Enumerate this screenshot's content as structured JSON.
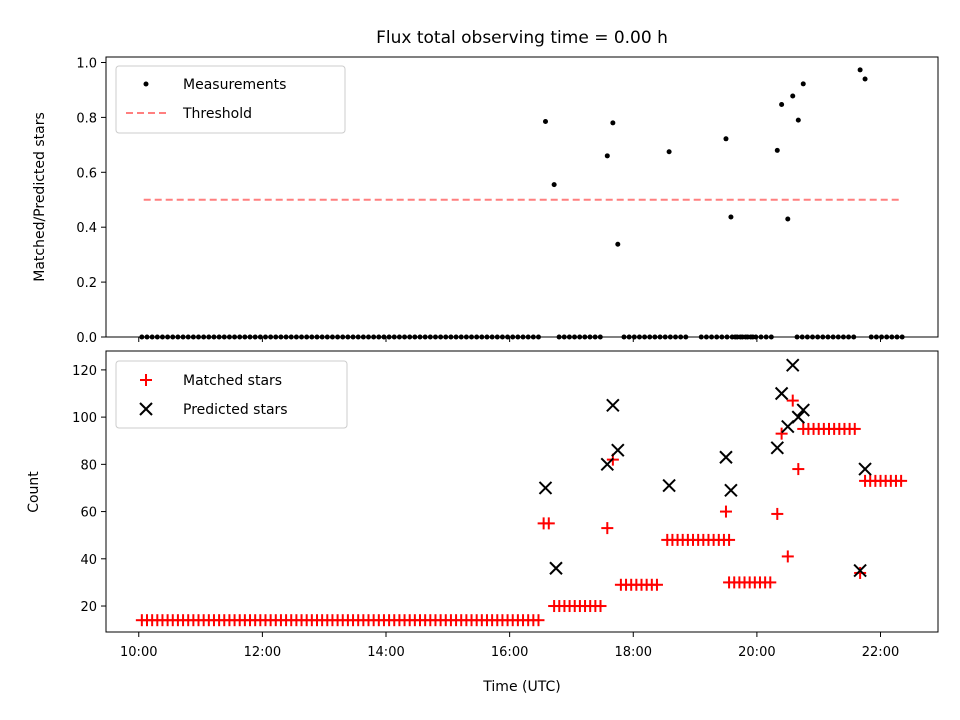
{
  "chart_data": {
    "title": "Flux total observing time = 0.00 h",
    "xlabel": "Time (UTC)",
    "x_ticks": [
      "10:00",
      "12:00",
      "14:00",
      "16:00",
      "18:00",
      "20:00",
      "22:00"
    ],
    "xlim_hours": [
      9.47,
      22.93
    ],
    "subplots": [
      {
        "type": "scatter",
        "ylabel": "Matched/Predicted stars",
        "ylim": [
          0,
          1.02
        ],
        "y_ticks": [
          "0.0",
          "0.2",
          "0.4",
          "0.6",
          "0.8",
          "1.0"
        ],
        "legend": {
          "placement": "upper-left",
          "entries": [
            "Measurements",
            "Threshold"
          ]
        },
        "series": [
          {
            "name": "Measurements",
            "marker": "dot",
            "color": "#000000",
            "zero_segments": [
              [
                10.05,
                16.5
              ],
              [
                16.8,
                17.5
              ],
              [
                17.85,
                18.9
              ],
              [
                19.1,
                19.95
              ],
              [
                19.65,
                20.25
              ],
              [
                20.65,
                21.6
              ],
              [
                21.85,
                22.35
              ]
            ],
            "zero_step_min": 5,
            "points": [
              {
                "x": 16.58,
                "y": 0.785
              },
              {
                "x": 16.72,
                "y": 0.555
              },
              {
                "x": 17.58,
                "y": 0.66
              },
              {
                "x": 17.67,
                "y": 0.78
              },
              {
                "x": 17.75,
                "y": 0.338
              },
              {
                "x": 18.58,
                "y": 0.675
              },
              {
                "x": 19.5,
                "y": 0.722
              },
              {
                "x": 19.58,
                "y": 0.437
              },
              {
                "x": 20.33,
                "y": 0.68
              },
              {
                "x": 20.4,
                "y": 0.847
              },
              {
                "x": 20.5,
                "y": 0.43
              },
              {
                "x": 20.58,
                "y": 0.878
              },
              {
                "x": 20.67,
                "y": 0.79
              },
              {
                "x": 20.75,
                "y": 0.922
              },
              {
                "x": 21.67,
                "y": 0.973
              },
              {
                "x": 21.75,
                "y": 0.94
              }
            ]
          },
          {
            "name": "Threshold",
            "style": "dashed",
            "color": "#ff7f7f",
            "y": 0.5,
            "x_range": [
              10.08,
              22.35
            ]
          }
        ]
      },
      {
        "type": "scatter",
        "ylabel": "Count",
        "ylim": [
          9,
          128
        ],
        "y_ticks": [
          "20",
          "40",
          "60",
          "80",
          "100",
          "120"
        ],
        "legend": {
          "placement": "upper-left",
          "entries": [
            "Matched stars",
            "Predicted stars"
          ]
        },
        "series": [
          {
            "name": "Matched stars",
            "marker": "plus",
            "color": "#ff0000",
            "runs": [
              {
                "x_start": 10.05,
                "x_end": 16.5,
                "y": 14
              },
              {
                "x_start": 16.55,
                "x_end": 16.65,
                "y": 55
              },
              {
                "x_start": 16.72,
                "x_end": 17.5,
                "y": 20
              },
              {
                "x_start": 17.8,
                "x_end": 18.4,
                "y": 29
              },
              {
                "x_start": 18.55,
                "x_end": 19.55,
                "y": 48
              },
              {
                "x_start": 19.55,
                "x_end": 20.25,
                "y": 30
              },
              {
                "x_start": 20.75,
                "x_end": 21.6,
                "y": 95
              },
              {
                "x_start": 21.75,
                "x_end": 22.35,
                "y": 73
              }
            ],
            "points": [
              {
                "x": 17.58,
                "y": 53
              },
              {
                "x": 17.67,
                "y": 82
              },
              {
                "x": 19.5,
                "y": 60
              },
              {
                "x": 20.33,
                "y": 59
              },
              {
                "x": 20.4,
                "y": 93
              },
              {
                "x": 20.5,
                "y": 41
              },
              {
                "x": 20.58,
                "y": 107
              },
              {
                "x": 20.67,
                "y": 78
              },
              {
                "x": 21.67,
                "y": 34
              }
            ]
          },
          {
            "name": "Predicted stars",
            "marker": "x",
            "color": "#000000",
            "points": [
              {
                "x": 16.58,
                "y": 70
              },
              {
                "x": 16.75,
                "y": 36
              },
              {
                "x": 17.58,
                "y": 80
              },
              {
                "x": 17.67,
                "y": 105
              },
              {
                "x": 17.75,
                "y": 86
              },
              {
                "x": 18.58,
                "y": 71
              },
              {
                "x": 19.5,
                "y": 83
              },
              {
                "x": 19.58,
                "y": 69
              },
              {
                "x": 20.33,
                "y": 87
              },
              {
                "x": 20.4,
                "y": 110
              },
              {
                "x": 20.5,
                "y": 96
              },
              {
                "x": 20.58,
                "y": 122
              },
              {
                "x": 20.67,
                "y": 100
              },
              {
                "x": 20.75,
                "y": 103
              },
              {
                "x": 21.67,
                "y": 35
              },
              {
                "x": 21.75,
                "y": 78
              }
            ]
          }
        ]
      }
    ]
  }
}
